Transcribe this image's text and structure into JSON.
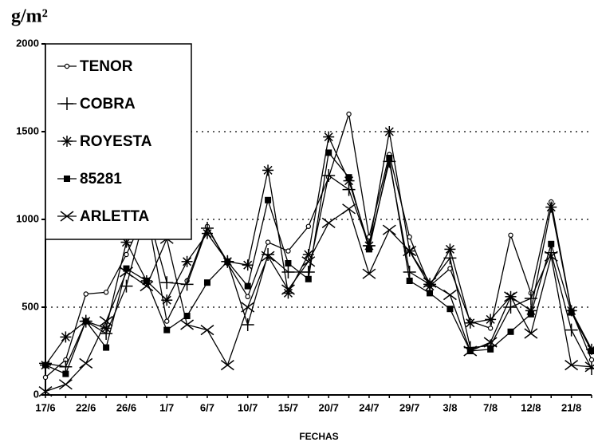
{
  "chart_data": {
    "type": "line",
    "title": "g/m²",
    "x_label": "FECHAS",
    "categories": [
      "17/6",
      null,
      "22/6",
      null,
      "26/6",
      null,
      "1/7",
      null,
      "6/7",
      null,
      "10/7",
      null,
      "15/7",
      null,
      "20/7",
      null,
      "24/7",
      null,
      "29/7",
      null,
      "3/8",
      null,
      "7/8",
      null,
      "12/8",
      null,
      "21/8",
      null
    ],
    "series": [
      {
        "name": "TENOR",
        "color": "#000000",
        "marker": "circle",
        "values": [
          100,
          200,
          575,
          585,
          800,
          1050,
          420,
          650,
          960,
          750,
          560,
          870,
          820,
          960,
          1240,
          1600,
          900,
          1370,
          900,
          620,
          720,
          420,
          380,
          910,
          580,
          1100,
          480,
          200
        ]
      },
      {
        "name": "COBRA",
        "color": "#000000",
        "marker": "plus",
        "values": [
          180,
          160,
          420,
          350,
          620,
          1060,
          640,
          630,
          950,
          760,
          400,
          800,
          700,
          700,
          1250,
          1170,
          850,
          1330,
          700,
          630,
          780,
          270,
          280,
          500,
          550,
          810,
          370,
          150
        ]
      },
      {
        "name": "ROYESTA",
        "color": "#000000",
        "marker": "asterisk",
        "values": [
          170,
          330,
          420,
          380,
          870,
          650,
          540,
          760,
          920,
          760,
          740,
          1280,
          580,
          800,
          1470,
          1220,
          850,
          1500,
          820,
          620,
          830,
          410,
          430,
          560,
          480,
          1070,
          480,
          260
        ]
      },
      {
        "name": "85281",
        "color": "#000000",
        "marker": "square",
        "values": [
          170,
          120,
          420,
          270,
          720,
          650,
          370,
          450,
          640,
          760,
          620,
          1110,
          750,
          660,
          1380,
          1240,
          830,
          1350,
          650,
          580,
          490,
          250,
          260,
          360,
          460,
          860,
          470,
          250
        ]
      },
      {
        "name": "ARLETTA",
        "color": "#000000",
        "marker": "cross",
        "values": [
          20,
          60,
          180,
          420,
          700,
          620,
          890,
          400,
          370,
          170,
          500,
          790,
          600,
          760,
          980,
          1060,
          690,
          940,
          820,
          640,
          570,
          250,
          300,
          560,
          350,
          790,
          170,
          160
        ]
      }
    ],
    "ylim": [
      0,
      2000
    ],
    "yticks": [
      0,
      500,
      1000,
      1500,
      2000
    ],
    "grid": true,
    "legend": "upper left"
  }
}
